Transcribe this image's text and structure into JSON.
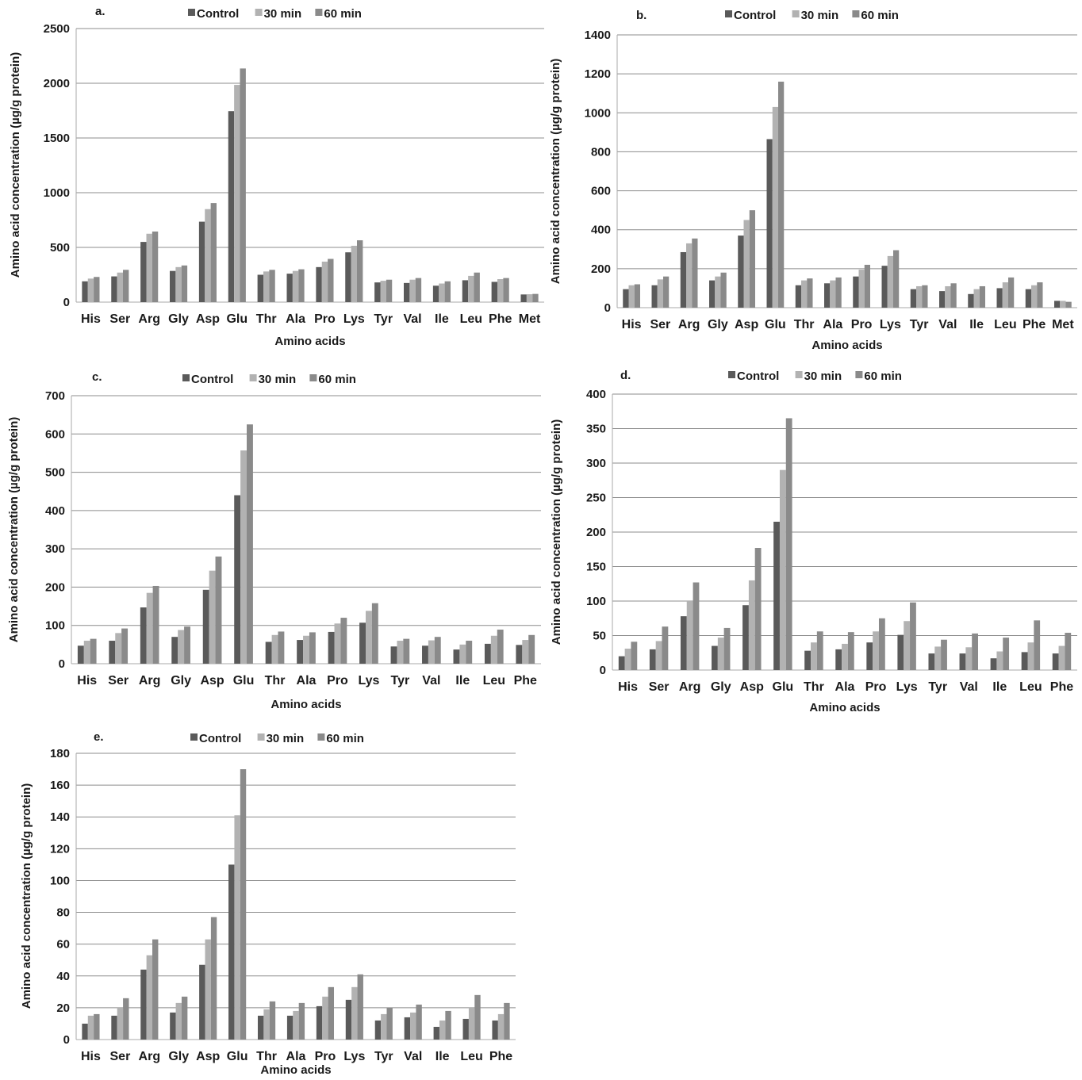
{
  "colors": {
    "control": "#5a5a5a",
    "min30": "#b2b2b2",
    "min60": "#8a8a8a",
    "grid": "#8c8c8c",
    "axis": "#aaaaaa"
  },
  "chart_data": [
    {
      "panel": "a.",
      "type": "bar",
      "xlabel": "Amino acids",
      "ylabel": "Amino acid concentration (µg/g protein)",
      "ylim": [
        0,
        2500
      ],
      "yticks": [
        0,
        500,
        1000,
        1500,
        2000,
        2500
      ],
      "grid": true,
      "legend_position": "top",
      "categories": [
        "His",
        "Ser",
        "Arg",
        "Gly",
        "Asp",
        "Glu",
        "Thr",
        "Ala",
        "Pro",
        "Lys",
        "Tyr",
        "Val",
        "Ile",
        "Leu",
        "Phe",
        "Met"
      ],
      "series": [
        {
          "name": "Control",
          "values": [
            190,
            235,
            550,
            285,
            735,
            1745,
            250,
            260,
            320,
            455,
            180,
            175,
            150,
            200,
            185,
            70
          ]
        },
        {
          "name": "30 min",
          "values": [
            215,
            270,
            625,
            320,
            850,
            1985,
            280,
            285,
            370,
            515,
            195,
            205,
            170,
            240,
            210,
            72
          ]
        },
        {
          "name": "60 min",
          "values": [
            230,
            295,
            645,
            335,
            905,
            2135,
            295,
            300,
            395,
            565,
            205,
            220,
            190,
            270,
            220,
            75
          ]
        }
      ]
    },
    {
      "panel": "b.",
      "type": "bar",
      "xlabel": "Amino acids",
      "ylabel": "Amino acid concentration (µg/g protein)",
      "ylim": [
        0,
        1400
      ],
      "yticks": [
        0,
        200,
        400,
        600,
        800,
        1000,
        1200,
        1400
      ],
      "grid": true,
      "legend_position": "top",
      "categories": [
        "His",
        "Ser",
        "Arg",
        "Gly",
        "Asp",
        "Glu",
        "Thr",
        "Ala",
        "Pro",
        "Lys",
        "Tyr",
        "Val",
        "Ile",
        "Leu",
        "Phe",
        "Met"
      ],
      "series": [
        {
          "name": "Control",
          "values": [
            95,
            115,
            285,
            140,
            370,
            865,
            115,
            125,
            160,
            215,
            95,
            85,
            70,
            100,
            95,
            35
          ]
        },
        {
          "name": "30 min",
          "values": [
            115,
            145,
            330,
            160,
            450,
            1030,
            140,
            140,
            195,
            265,
            110,
            110,
            95,
            130,
            115,
            35
          ]
        },
        {
          "name": "60 min",
          "values": [
            120,
            160,
            355,
            180,
            500,
            1160,
            150,
            155,
            220,
            295,
            115,
            125,
            110,
            155,
            130,
            30
          ]
        }
      ]
    },
    {
      "panel": "c.",
      "type": "bar",
      "xlabel": "Amino acids",
      "ylabel": "Amino acid concentration (µg/g protein)",
      "ylim": [
        0,
        700
      ],
      "yticks": [
        0,
        100,
        200,
        300,
        400,
        500,
        600,
        700
      ],
      "grid": true,
      "legend_position": "top",
      "categories": [
        "His",
        "Ser",
        "Arg",
        "Gly",
        "Asp",
        "Glu",
        "Thr",
        "Ala",
        "Pro",
        "Lys",
        "Tyr",
        "Val",
        "Ile",
        "Leu",
        "Phe"
      ],
      "series": [
        {
          "name": "Control",
          "values": [
            47,
            60,
            147,
            70,
            193,
            440,
            57,
            62,
            83,
            107,
            45,
            47,
            37,
            52,
            49
          ]
        },
        {
          "name": "30 min",
          "values": [
            60,
            80,
            185,
            88,
            243,
            557,
            75,
            73,
            105,
            138,
            60,
            61,
            50,
            73,
            62
          ]
        },
        {
          "name": "60 min",
          "values": [
            65,
            92,
            203,
            97,
            280,
            625,
            84,
            82,
            120,
            158,
            65,
            70,
            60,
            89,
            75
          ]
        }
      ]
    },
    {
      "panel": "d.",
      "type": "bar",
      "xlabel": "Amino acids",
      "ylabel": "Amino acid concentration (µg/g protein)",
      "ylim": [
        0,
        400
      ],
      "yticks": [
        0,
        50,
        100,
        150,
        200,
        250,
        300,
        350,
        400
      ],
      "grid": true,
      "legend_position": "top",
      "categories": [
        "His",
        "Ser",
        "Arg",
        "Gly",
        "Asp",
        "Glu",
        "Thr",
        "Ala",
        "Pro",
        "Lys",
        "Tyr",
        "Val",
        "Ile",
        "Leu",
        "Phe"
      ],
      "series": [
        {
          "name": "Control",
          "values": [
            20,
            30,
            78,
            35,
            94,
            215,
            28,
            30,
            40,
            51,
            24,
            24,
            17,
            26,
            24
          ]
        },
        {
          "name": "30 min",
          "values": [
            31,
            42,
            100,
            47,
            130,
            290,
            40,
            38,
            56,
            71,
            34,
            33,
            27,
            40,
            35
          ]
        },
        {
          "name": "60 min",
          "values": [
            41,
            63,
            127,
            61,
            177,
            365,
            56,
            55,
            75,
            98,
            44,
            53,
            47,
            72,
            54
          ]
        }
      ]
    },
    {
      "panel": "e.",
      "type": "bar",
      "xlabel": "Amino acids",
      "ylabel": "Amino acid concentration (µg/g protein)",
      "ylim": [
        0,
        180
      ],
      "yticks": [
        0,
        20,
        40,
        60,
        80,
        100,
        120,
        140,
        160,
        180
      ],
      "grid": true,
      "legend_position": "top",
      "categories": [
        "His",
        "Ser",
        "Arg",
        "Gly",
        "Asp",
        "Glu",
        "Thr",
        "Ala",
        "Pro",
        "Lys",
        "Tyr",
        "Val",
        "Ile",
        "Leu",
        "Phe"
      ],
      "series": [
        {
          "name": "Control",
          "values": [
            10,
            15,
            44,
            17,
            47,
            110,
            15,
            15,
            21,
            25,
            12,
            14,
            8,
            13,
            12
          ]
        },
        {
          "name": "30 min",
          "values": [
            15,
            20,
            53,
            23,
            63,
            141,
            19,
            18,
            27,
            33,
            16,
            17,
            12,
            20,
            16
          ]
        },
        {
          "name": "60 min",
          "values": [
            16,
            26,
            63,
            27,
            77,
            170,
            24,
            23,
            33,
            41,
            20,
            22,
            18,
            28,
            23
          ]
        }
      ]
    }
  ]
}
